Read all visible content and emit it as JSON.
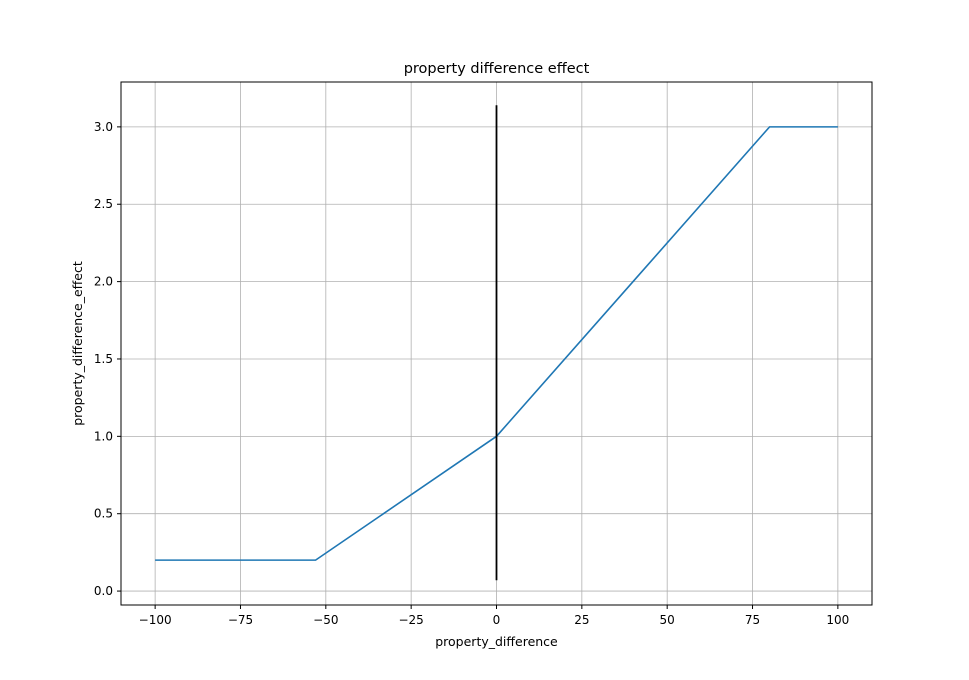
{
  "chart_data": {
    "type": "line",
    "title": "property difference effect",
    "xlabel": "property_difference",
    "ylabel": "property_difference_effect",
    "xlim": [
      -110,
      110
    ],
    "ylim": [
      -0.09,
      3.29
    ],
    "xticks": [
      -100,
      -75,
      -50,
      -25,
      0,
      25,
      50,
      75,
      100
    ],
    "xtick_labels": [
      "−100",
      "−75",
      "−50",
      "−25",
      "0",
      "25",
      "50",
      "75",
      "100"
    ],
    "yticks": [
      0.0,
      0.5,
      1.0,
      1.5,
      2.0,
      2.5,
      3.0
    ],
    "ytick_labels": [
      "0.0",
      "0.5",
      "1.0",
      "1.5",
      "2.0",
      "2.5",
      "3.0"
    ],
    "grid": true,
    "series": [
      {
        "color": "#1f77b4",
        "x": [
          -100,
          -54,
          -53,
          0,
          80,
          100
        ],
        "y": [
          0.2,
          0.2,
          0.2,
          1.0,
          3.0,
          3.0
        ]
      }
    ],
    "vline": {
      "x": 0,
      "ymin": 0.07,
      "ymax": 3.14,
      "color": "#000000"
    }
  }
}
